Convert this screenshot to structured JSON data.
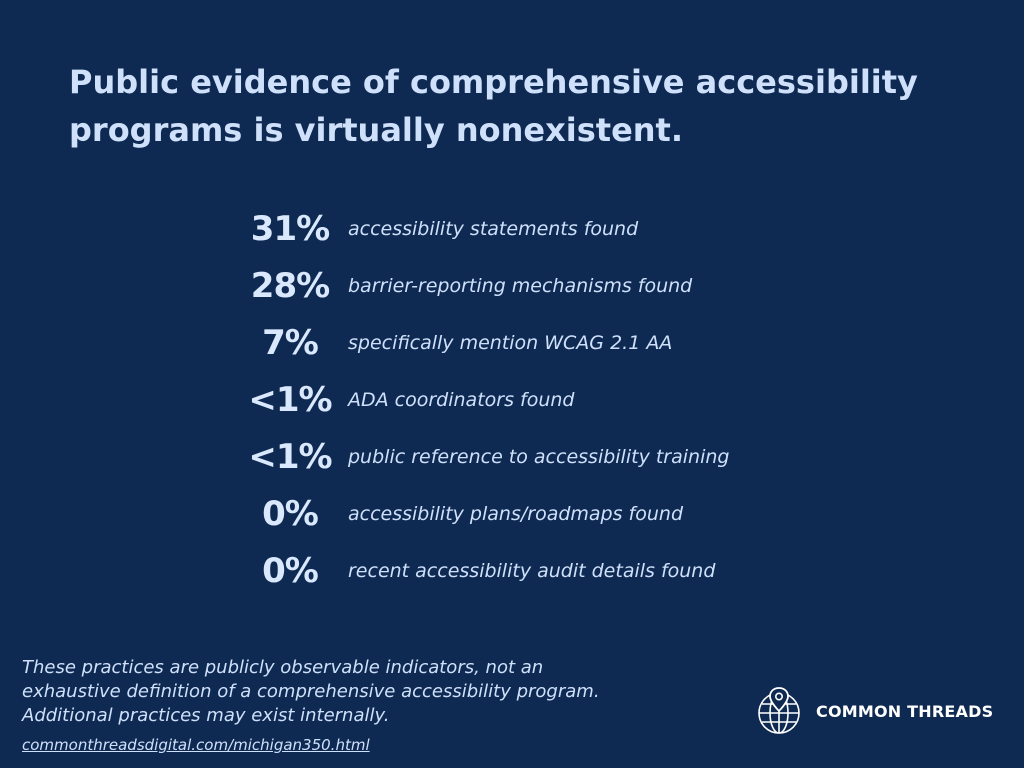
{
  "headline": "Public evidence of comprehensive accessibility programs is virtually nonexistent.",
  "stats": [
    {
      "value": "31%",
      "label": "accessibility statements found"
    },
    {
      "value": "28%",
      "label": "barrier-reporting mechanisms found"
    },
    {
      "value": "7%",
      "label": "specifically mention WCAG 2.1 AA"
    },
    {
      "value": "<1%",
      "label": "ADA coordinators found"
    },
    {
      "value": "<1%",
      "label": "public reference to accessibility training"
    },
    {
      "value": "0%",
      "label": "accessibility plans/roadmaps found"
    },
    {
      "value": "0%",
      "label": "recent accessibility audit details found"
    }
  ],
  "footnote": {
    "lines": [
      "These practices are publicly observable indicators, not an",
      "exhaustive definition of a comprehensive accessibility program.",
      "Additional practices may exist internally."
    ]
  },
  "source_link": "commonthreadsdigital.com/michigan350.html",
  "brand": {
    "name": "COMMON THREADS",
    "logo_icon": "globe-pin-icon"
  },
  "colors": {
    "background": "#0f2a52",
    "text": "#cfe0fa",
    "brand_text": "#ffffff"
  }
}
